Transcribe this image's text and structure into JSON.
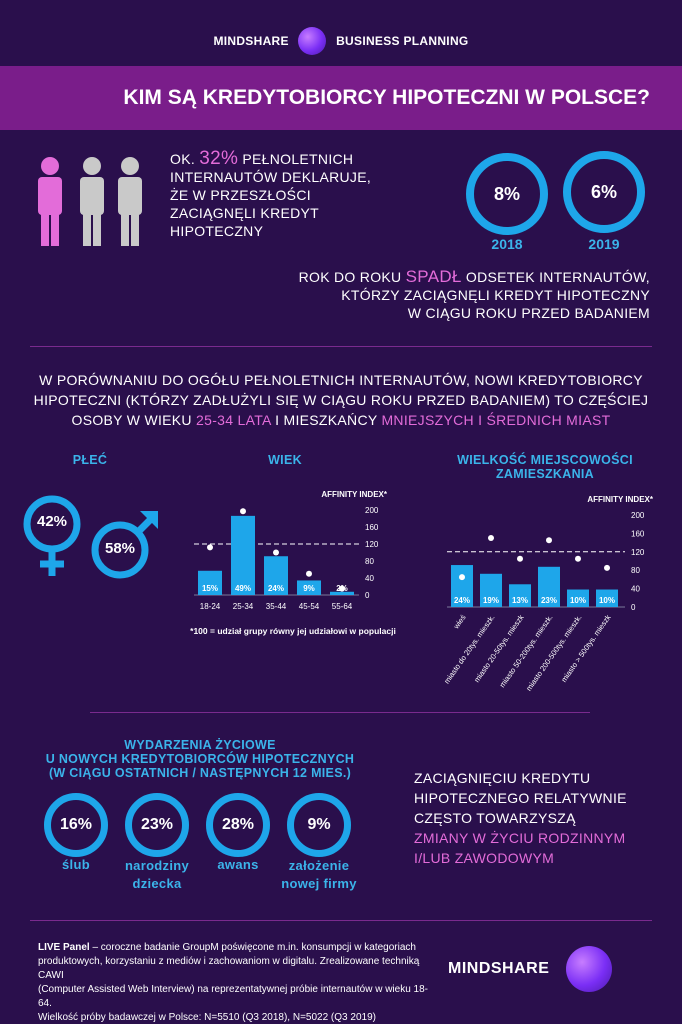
{
  "header": {
    "brand_left": "MINDSHARE",
    "brand_right": "BUSINESS PLANNING"
  },
  "banner": {
    "title": "KIM SĄ KREDYTOBIORCY HIPOTECZNI W POLSCE?"
  },
  "intro": {
    "prefix": "OK.",
    "percent": "32%",
    "suffix": "PEŁNOLETNICH",
    "lines": [
      "INTERNAUTÓW DEKLARUJE,",
      "ŻE W PRZESZŁOŚCI",
      "ZACIĄGNĘLI KREDYT",
      "HIPOTECZNY"
    ]
  },
  "years": [
    {
      "value": "8%",
      "year": "2018"
    },
    {
      "value": "6%",
      "year": "2019"
    }
  ],
  "decline": {
    "prefix": "ROK DO ROKU",
    "highlight": "SPADŁ",
    "suffix": "ODSETEK INTERNAUTÓW,",
    "line2": "KTÓRZY ZACIĄGNĘLI KREDYT HIPOTECZNY",
    "line3": "W CIĄGU ROKU PRZED BADANIEM"
  },
  "comparison": {
    "line1": "W PORÓWNANIU DO OGÓŁU PEŁNOLETNICH INTERNAUTÓW, NOWI KREDYTOBIORCY",
    "line2": "HIPOTECZNI (KTÓRZY ZADŁUŻYLI SIĘ W CIĄGU ROKU PRZED BADANIEM) TO CZĘŚCIEJ",
    "line3_prefix": "OSOBY W WIEKU",
    "line3_age": "25-34 LATA",
    "line3_mid": "I MIESZKAŃCY",
    "line3_city": "MNIEJSZYCH I ŚREDNICH MIAST"
  },
  "gender": {
    "heading": "PŁEĆ",
    "female": "42%",
    "male": "58%"
  },
  "age_heading": "WIEK",
  "city_heading_1": "WIELKOŚĆ MIEJSCOWOŚCI",
  "city_heading_2": "ZAMIESZKANIA",
  "affinity_note": "*100 = udział grupy równy jej udziałowi w populacji",
  "chart_data": [
    {
      "type": "bar",
      "title": "WIEK",
      "categories": [
        "18-24",
        "25-34",
        "35-44",
        "45-54",
        "55-64"
      ],
      "series": [
        {
          "values": [
            15,
            49,
            24,
            9,
            2
          ]
        },
        {
          "values": [
            112,
            197,
            100,
            50,
            15
          ]
        }
      ],
      "y2label": "AFFINITY INDEX*",
      "y2lim": [
        0,
        200
      ],
      "y2ticks": [
        0,
        40,
        80,
        120,
        160,
        200
      ],
      "reference_line": 120,
      "value_labels": [
        "15%",
        "49%",
        "24%",
        "9%",
        "2%"
      ]
    },
    {
      "type": "bar",
      "title": "WIELKOŚĆ MIEJSCOWOŚCI ZAMIESZKANIA",
      "categories": [
        "wieś",
        "miasto do 20tys. mieszk.",
        "miasto 20-50tys. mieszk",
        "miasto 50-200tys. mieszk.",
        "miasto 200-500tys. mieszk.",
        "miasto > 500tys. mieszk"
      ],
      "series": [
        {
          "values": [
            24,
            19,
            13,
            23,
            10,
            10
          ]
        },
        {
          "values": [
            65,
            150,
            105,
            145,
            105,
            85
          ]
        }
      ],
      "y2label": "AFFINITY INDEX*",
      "y2lim": [
        0,
        200
      ],
      "y2ticks": [
        0,
        40,
        80,
        120,
        160,
        200
      ],
      "reference_line": 120,
      "value_labels": [
        "24%",
        "19%",
        "13%",
        "23%",
        "10%",
        "10%"
      ]
    }
  ],
  "events": {
    "h1": "WYDARZENIA ŻYCIOWE",
    "h2": "U NOWYCH KREDYTOBIORCÓW HIPOTECZNYCH",
    "h3": "(W CIĄGU OSTATNICH / NASTĘPNYCH 12 MIES.)",
    "items": [
      {
        "value": "16%",
        "l1": "ślub",
        "l2": ""
      },
      {
        "value": "23%",
        "l1": "narodziny",
        "l2": "dziecka"
      },
      {
        "value": "28%",
        "l1": "awans",
        "l2": ""
      },
      {
        "value": "9%",
        "l1": "założenie",
        "l2": "nowej firmy"
      }
    ]
  },
  "events_text": {
    "l1": "ZACIĄGNIĘCIU KREDYTU",
    "l2": "HIPOTECZNEGO RELATYWNIE",
    "l3": "CZĘSTO TOWARZYSZĄ",
    "l4": "ZMIANY W ŻYCIU RODZINNYM",
    "l5": "I/LUB ZAWODOWYM"
  },
  "footer": {
    "bold": "LIVE Panel",
    "l1": " – coroczne badanie GroupM poświęcone m.in. konsumpcji w kategoriach",
    "l2": "produktowych, korzystaniu z mediów i zachowaniom w digitalu. Zrealizowane techniką CAWI",
    "l3": "(Computer Assisted Web Interview) na reprezentatywnej próbie internautów w wieku 18-64.",
    "l4": "Wielkość próby badawczej w Polsce: N=5510 (Q3 2018), N=5022 (Q3 2019)",
    "logo": "MINDSHARE"
  },
  "colors": {
    "bg": "#2a0f4c",
    "accent": "#1ea6ea",
    "pink": "#e36cd9",
    "banner": "#7a1d8a"
  }
}
